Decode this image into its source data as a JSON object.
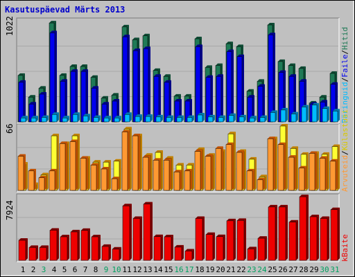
{
  "title": "Kasutuspäevad Märts 2013",
  "colors": {
    "background": "#c0c0c0",
    "title": "#0000cc",
    "grid": "#a8a8a8",
    "pages_side": "#1f7a56",
    "pages_front": "#0000ee",
    "files_side": "#1f7a56",
    "files_front": "#3399ff",
    "hits_side": "#1f7a56",
    "hits_front": "#00bbff",
    "visits_side": "#c08000",
    "visits_front": "#ffff33",
    "sites_side": "#c05000",
    "sites_front": "#ff9933",
    "kbytes_side": "#7a0000",
    "kbytes_front": "#ee0000",
    "weekday_label": "#000000",
    "weekend_label": "#00a060"
  },
  "chart_data": [
    {
      "type": "bar",
      "name": "top",
      "ymax_label": "1022",
      "ylim": [
        0,
        1022
      ],
      "legend": [
        "Hitid",
        "Faile",
        "Päringuid"
      ],
      "legend_colors": [
        "#1f7a56",
        "#0000ee",
        "#00bbff"
      ],
      "categories": [
        "1",
        "2",
        "3",
        "4",
        "5",
        "6",
        "7",
        "8",
        "9",
        "10",
        "11",
        "12",
        "13",
        "14",
        "15",
        "16",
        "17",
        "18",
        "19",
        "20",
        "21",
        "22",
        "23",
        "24",
        "25",
        "26",
        "27",
        "28",
        "29",
        "30",
        "31"
      ],
      "series": [
        {
          "name": "Hitid",
          "values": [
            470,
            250,
            340,
            1000,
            470,
            560,
            560,
            450,
            240,
            270,
            960,
            830,
            870,
            520,
            460,
            260,
            260,
            840,
            550,
            570,
            790,
            760,
            310,
            410,
            980,
            610,
            570,
            540,
            190,
            250,
            490
          ]
        },
        {
          "name": "Faile",
          "values": [
            400,
            180,
            280,
            900,
            410,
            510,
            510,
            340,
            180,
            210,
            860,
            720,
            740,
            460,
            400,
            210,
            210,
            760,
            450,
            460,
            710,
            660,
            250,
            360,
            880,
            500,
            460,
            410,
            180,
            200,
            380
          ]
        },
        {
          "name": "Päringuid",
          "values": [
            40,
            40,
            45,
            75,
            40,
            75,
            60,
            45,
            40,
            40,
            75,
            55,
            55,
            50,
            45,
            45,
            45,
            70,
            50,
            45,
            65,
            50,
            40,
            45,
            95,
            120,
            80,
            150,
            170,
            135,
            110
          ]
        }
      ]
    },
    {
      "type": "bar",
      "name": "middle",
      "ymax_label": "66",
      "ylim": [
        0,
        66
      ],
      "legend": [
        "Külastusi",
        "Arvuteid"
      ],
      "legend_colors": [
        "#ffff33",
        "#ff9933"
      ],
      "categories": [
        "1",
        "2",
        "3",
        "4",
        "5",
        "6",
        "7",
        "8",
        "9",
        "10",
        "11",
        "12",
        "13",
        "14",
        "15",
        "16",
        "17",
        "18",
        "19",
        "20",
        "21",
        "22",
        "23",
        "24",
        "25",
        "26",
        "27",
        "28",
        "29",
        "30",
        "31"
      ],
      "series": [
        {
          "name": "Külastusi",
          "values": [
            27,
            6,
            16,
            56,
            48,
            56,
            33,
            29,
            29,
            30,
            63,
            56,
            36,
            39,
            33,
            26,
            26,
            42,
            36,
            40,
            58,
            40,
            32,
            14,
            53,
            66,
            43,
            37,
            38,
            37,
            45
          ]
        },
        {
          "name": "Arvuteid",
          "values": [
            35,
            20,
            13,
            20,
            48,
            50,
            33,
            26,
            22,
            12,
            60,
            56,
            34,
            31,
            31,
            19,
            20,
            40,
            35,
            43,
            47,
            39,
            20,
            11,
            53,
            47,
            34,
            23,
            38,
            33,
            30
          ]
        }
      ]
    },
    {
      "type": "bar",
      "name": "bottom",
      "ymax_label": "7924",
      "ylim": [
        0,
        7924
      ],
      "legend": [
        "kBaite"
      ],
      "legend_colors": [
        "#ee0000"
      ],
      "categories": [
        "1",
        "2",
        "3",
        "4",
        "5",
        "6",
        "7",
        "8",
        "9",
        "10",
        "11",
        "12",
        "13",
        "14",
        "15",
        "16",
        "17",
        "18",
        "19",
        "20",
        "21",
        "22",
        "23",
        "24",
        "25",
        "26",
        "27",
        "28",
        "29",
        "30",
        "31"
      ],
      "series": [
        {
          "name": "kBaite",
          "values": [
            2470,
            1590,
            1590,
            3710,
            2900,
            3500,
            3680,
            2900,
            1710,
            1380,
            6710,
            5160,
            6930,
            2920,
            2900,
            1630,
            1150,
            5160,
            3180,
            2920,
            4870,
            4910,
            1420,
            2720,
            6570,
            6570,
            4710,
            7830,
            5370,
            5160,
            6240
          ]
        }
      ]
    }
  ],
  "xaxis": {
    "labels": [
      "1",
      "2",
      "3",
      "4",
      "5",
      "6",
      "7",
      "8",
      "9",
      "10",
      "11",
      "12",
      "13",
      "14",
      "15",
      "16",
      "17",
      "18",
      "19",
      "20",
      "21",
      "22",
      "23",
      "24",
      "25",
      "26",
      "27",
      "28",
      "29",
      "30",
      "31"
    ],
    "weekend": [
      false,
      false,
      true,
      false,
      false,
      false,
      false,
      false,
      true,
      true,
      false,
      false,
      false,
      false,
      false,
      true,
      true,
      false,
      false,
      false,
      false,
      false,
      true,
      true,
      false,
      false,
      false,
      false,
      false,
      true,
      true
    ]
  }
}
